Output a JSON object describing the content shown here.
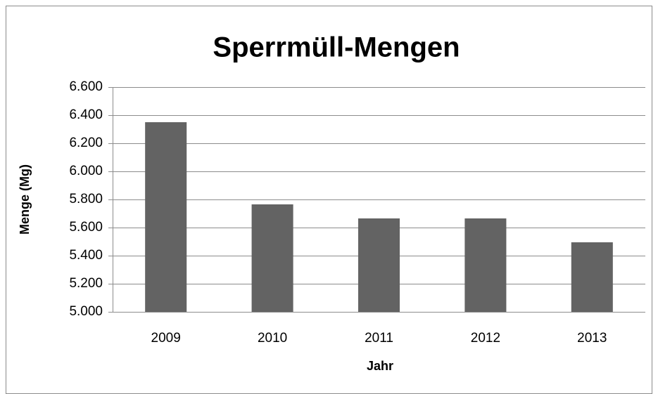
{
  "chart_data": {
    "type": "bar",
    "title": "Sperrmüll-Mengen",
    "x_label": "Jahr",
    "y_label": "Menge (Mg)",
    "categories": [
      "2009",
      "2010",
      "2011",
      "2012",
      "2013"
    ],
    "values": [
      6350,
      5765,
      5665,
      5665,
      5495
    ],
    "color": "#636363",
    "ylim": [
      5000,
      6600
    ],
    "yticks": [
      {
        "value": 5000,
        "label": "5.000"
      },
      {
        "value": 5200,
        "label": "5.200"
      },
      {
        "value": 5400,
        "label": "5.400"
      },
      {
        "value": 5600,
        "label": "5.600"
      },
      {
        "value": 5800,
        "label": "5.800"
      },
      {
        "value": 6000,
        "label": "6.000"
      },
      {
        "value": 6200,
        "label": "6.200"
      },
      {
        "value": 6400,
        "label": "6.400"
      },
      {
        "value": 6600,
        "label": "6.600"
      }
    ],
    "grid": true
  }
}
